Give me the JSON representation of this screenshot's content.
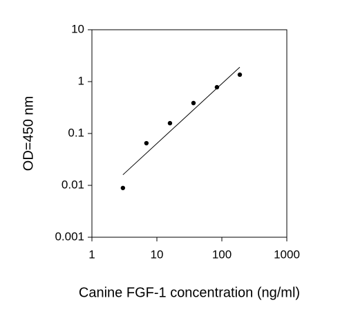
{
  "chart_data": {
    "type": "scatter",
    "xlabel": "Canine FGF-1 concentration (ng/ml)",
    "ylabel": "OD=450 nm",
    "xscale": "log",
    "yscale": "log",
    "xlim": [
      1,
      1000
    ],
    "xticks": [
      1,
      10,
      100,
      1000
    ],
    "ylim": [
      0.001,
      10
    ],
    "yticks": [
      0.001,
      0.01,
      0.1,
      1,
      10
    ],
    "series": [
      {
        "color": "#000000",
        "x": [
          3.0,
          6.9,
          15.9,
          36.6,
          84,
          189
        ],
        "values": [
          0.0089,
          0.065,
          0.158,
          0.386,
          0.78,
          1.36
        ]
      }
    ],
    "fit": {
      "color": "#000000",
      "x": [
        3.0,
        189
      ],
      "values": [
        0.016,
        1.9
      ]
    }
  }
}
